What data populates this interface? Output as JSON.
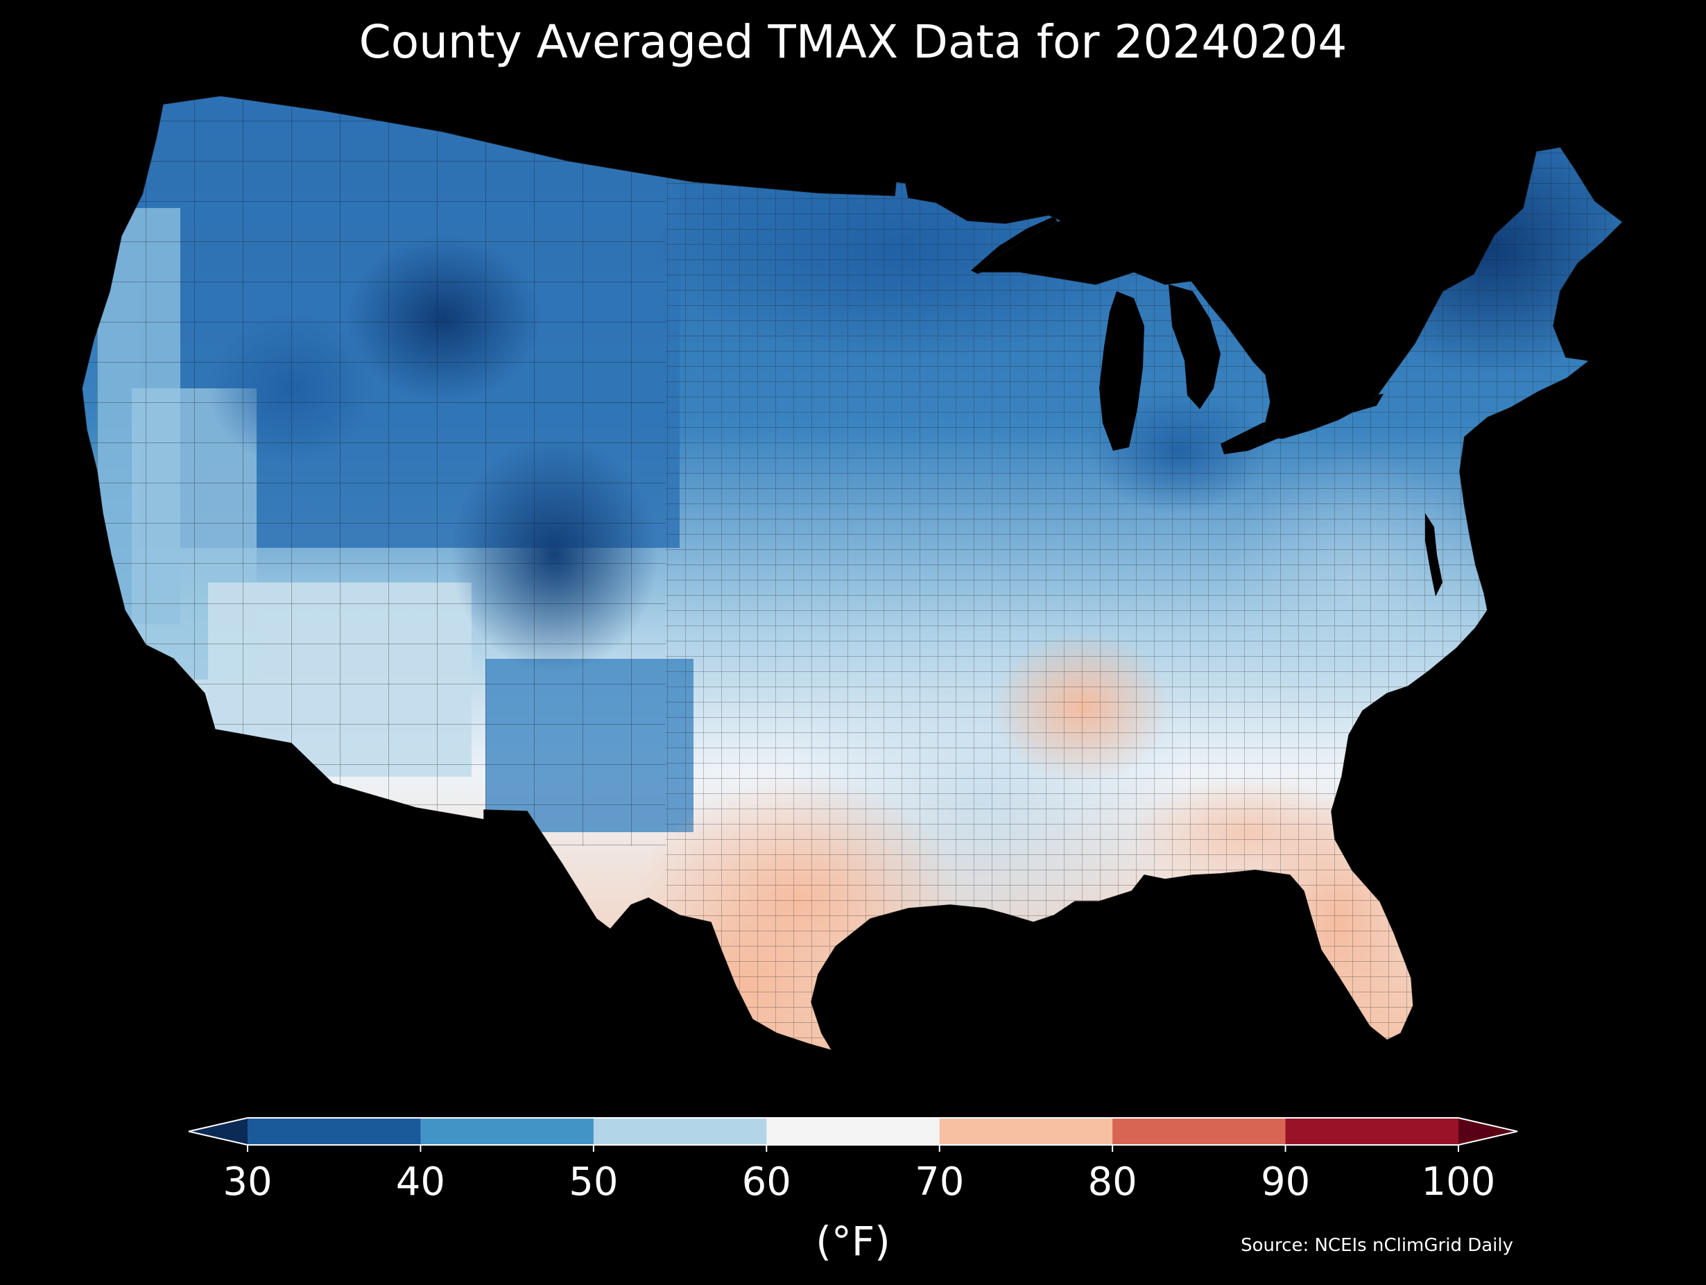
{
  "title": "County Averaged TMAX Data for 20240204",
  "source": "Source: NCEIs nClimGrid Daily",
  "colorbar": {
    "unit_label": "(°F)",
    "ticks": [
      "30",
      "40",
      "50",
      "60",
      "70",
      "80",
      "90",
      "100"
    ],
    "bins": [
      {
        "from": 30,
        "to": 40,
        "color": "#1b5a9a"
      },
      {
        "from": 40,
        "to": 50,
        "color": "#4394c6"
      },
      {
        "from": 50,
        "to": 60,
        "color": "#b3d5e8"
      },
      {
        "from": 60,
        "to": 70,
        "color": "#f4f4f4"
      },
      {
        "from": 70,
        "to": 80,
        "color": "#f7c0a3"
      },
      {
        "from": 80,
        "to": 90,
        "color": "#d86553"
      },
      {
        "from": 90,
        "to": 100,
        "color": "#9a1228"
      }
    ],
    "under_color": "#0b2a55",
    "over_color": "#5a0014",
    "extend": "both"
  },
  "map": {
    "region": "Contiguous United States, county level",
    "variable": "TMAX",
    "background": "#000000"
  }
}
